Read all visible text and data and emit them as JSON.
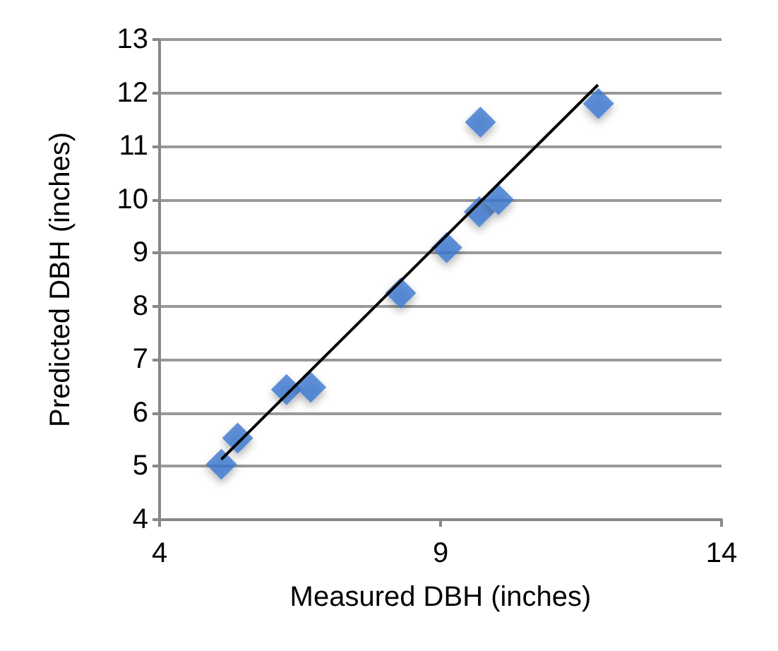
{
  "chart_data": {
    "type": "scatter",
    "xlabel": "Measured DBH (inches)",
    "ylabel": "Predicted DBH (inches)",
    "xlim": [
      4,
      14
    ],
    "xticks": [
      4,
      9,
      14
    ],
    "ylim": [
      4,
      13
    ],
    "yticks": [
      4,
      5,
      6,
      7,
      8,
      9,
      10,
      11,
      12,
      13
    ],
    "grid": "y",
    "marker": "diamond",
    "series": [
      {
        "color": "#3b78d0",
        "x": [
          5.1,
          5.39,
          6.26,
          6.69,
          8.29,
          9.11,
          9.71,
          9.69,
          10.03,
          11.81
        ],
        "values": [
          5.04,
          5.53,
          6.44,
          6.48,
          8.25,
          9.1,
          11.45,
          9.77,
          10.0,
          11.8
        ]
      },
      {
        "type": "line",
        "color": "#000000",
        "marker": "none",
        "x": [
          5.1,
          11.8
        ],
        "values": [
          5.13,
          12.15
        ]
      }
    ]
  }
}
